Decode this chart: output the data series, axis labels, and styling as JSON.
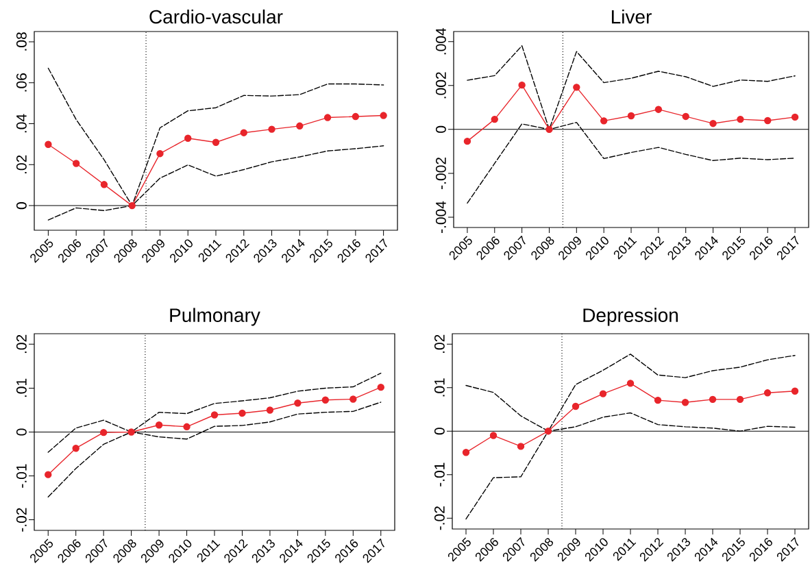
{
  "chart_data": [
    {
      "type": "line",
      "title": "Cardio-vascular",
      "x": [
        2005,
        2006,
        2007,
        2008,
        2009,
        2010,
        2011,
        2012,
        2013,
        2014,
        2015,
        2016,
        2017
      ],
      "xlim": [
        2004.5,
        2017.5
      ],
      "xticks": [
        2005,
        2006,
        2007,
        2008,
        2009,
        2010,
        2011,
        2012,
        2013,
        2014,
        2015,
        2016,
        2017
      ],
      "ylim": [
        -0.012,
        0.085
      ],
      "yticks": [
        {
          "value": 0,
          "label": "0"
        },
        {
          "value": 0.02,
          "label": ".02"
        },
        {
          "value": 0.04,
          "label": ".04"
        },
        {
          "value": 0.06,
          "label": ".06"
        },
        {
          "value": 0.08,
          "label": ".08"
        }
      ],
      "series": [
        {
          "color": "#000000",
          "line_style": "dashed",
          "marker": "none",
          "values": [
            0.0671,
            0.042,
            0.0224,
            0.0,
            0.038,
            0.0463,
            0.0478,
            0.0538,
            0.0535,
            0.0542,
            0.0594,
            0.0594,
            0.0589
          ]
        },
        {
          "color": "#000000",
          "line_style": "dashed",
          "marker": "none",
          "values": [
            -0.007,
            -0.0011,
            -0.0024,
            0.0,
            0.0134,
            0.0199,
            0.0144,
            0.0176,
            0.0214,
            0.0238,
            0.0267,
            0.0278,
            0.0292
          ]
        },
        {
          "color": "#e8252b",
          "line_style": "solid",
          "marker": "circle",
          "values": [
            0.0299,
            0.0206,
            0.0103,
            0.0,
            0.0254,
            0.0329,
            0.0309,
            0.0356,
            0.0373,
            0.0389,
            0.043,
            0.0435,
            0.044
          ]
        }
      ],
      "ref_lines": [
        {
          "axis": "y",
          "value": 0,
          "color": "#000000",
          "line_style": "solid"
        },
        {
          "axis": "x",
          "value": 2008.5,
          "color": "#000000",
          "line_style": "dotted"
        }
      ]
    },
    {
      "type": "line",
      "title": "Liver",
      "x": [
        2005,
        2006,
        2007,
        2008,
        2009,
        2010,
        2011,
        2012,
        2013,
        2014,
        2015,
        2016,
        2017
      ],
      "xlim": [
        2004.5,
        2017.5
      ],
      "xticks": [
        2005,
        2006,
        2007,
        2008,
        2009,
        2010,
        2011,
        2012,
        2013,
        2014,
        2015,
        2016,
        2017
      ],
      "ylim": [
        -0.00447,
        0.00446
      ],
      "yticks": [
        {
          "value": -0.004,
          "label": "-.004"
        },
        {
          "value": -0.002,
          "label": "-.002"
        },
        {
          "value": 0,
          "label": "0"
        },
        {
          "value": 0.002,
          "label": ".002"
        },
        {
          "value": 0.004,
          "label": ".004"
        }
      ],
      "series": [
        {
          "color": "#000000",
          "line_style": "dashed",
          "marker": "none",
          "values": [
            0.00224,
            0.00245,
            0.00381,
            0.0,
            0.00355,
            0.00213,
            0.00233,
            0.00265,
            0.0024,
            0.00196,
            0.00225,
            0.00219,
            0.00244
          ]
        },
        {
          "color": "#000000",
          "line_style": "dashed",
          "marker": "none",
          "values": [
            -0.00336,
            -0.00155,
            0.00025,
            0.0,
            0.00032,
            -0.00133,
            -0.00105,
            -0.00082,
            -0.00114,
            -0.00142,
            -0.00131,
            -0.00138,
            -0.00131
          ]
        },
        {
          "color": "#e8252b",
          "line_style": "solid",
          "marker": "circle",
          "values": [
            -0.00054,
            0.00046,
            0.00202,
            0.0,
            0.00192,
            0.00039,
            0.00062,
            0.00091,
            0.00059,
            0.00027,
            0.00046,
            0.0004,
            0.00056
          ]
        }
      ],
      "ref_lines": [
        {
          "axis": "y",
          "value": 0,
          "color": "#000000",
          "line_style": "solid"
        },
        {
          "axis": "x",
          "value": 2008.5,
          "color": "#000000",
          "line_style": "dotted"
        }
      ]
    },
    {
      "type": "line",
      "title": "Pulmonary",
      "x": [
        2005,
        2006,
        2007,
        2008,
        2009,
        2010,
        2011,
        2012,
        2013,
        2014,
        2015,
        2016,
        2017
      ],
      "xlim": [
        2004.5,
        2017.5
      ],
      "xticks": [
        2005,
        2006,
        2007,
        2008,
        2009,
        2010,
        2011,
        2012,
        2013,
        2014,
        2015,
        2016,
        2017
      ],
      "ylim": [
        -0.0224,
        0.0224
      ],
      "yticks": [
        {
          "value": -0.02,
          "label": "-.02"
        },
        {
          "value": -0.01,
          "label": "-.01"
        },
        {
          "value": 0,
          "label": "0"
        },
        {
          "value": 0.01,
          "label": ".01"
        },
        {
          "value": 0.02,
          "label": ".02"
        }
      ],
      "series": [
        {
          "color": "#000000",
          "line_style": "dashed",
          "marker": "none",
          "values": [
            -0.0046,
            0.0009,
            0.0027,
            0.0,
            0.0045,
            0.0042,
            0.0065,
            0.0071,
            0.0078,
            0.0093,
            0.01,
            0.0103,
            0.0134
          ]
        },
        {
          "color": "#000000",
          "line_style": "dashed",
          "marker": "none",
          "values": [
            -0.0148,
            -0.0083,
            -0.0028,
            0.0,
            -0.0011,
            -0.0016,
            0.0013,
            0.0015,
            0.0023,
            0.0041,
            0.0045,
            0.0047,
            0.0068
          ]
        },
        {
          "color": "#e8252b",
          "line_style": "solid",
          "marker": "circle",
          "values": [
            -0.0097,
            -0.0037,
            -0.0001,
            0.0,
            0.0016,
            0.0012,
            0.0039,
            0.0043,
            0.005,
            0.0066,
            0.0073,
            0.0075,
            0.0102
          ]
        }
      ],
      "ref_lines": [
        {
          "axis": "y",
          "value": 0,
          "color": "#000000",
          "line_style": "solid"
        },
        {
          "axis": "x",
          "value": 2008.5,
          "color": "#000000",
          "line_style": "dotted"
        }
      ]
    },
    {
      "type": "line",
      "title": "Depression",
      "x": [
        2005,
        2006,
        2007,
        2008,
        2009,
        2010,
        2011,
        2012,
        2013,
        2014,
        2015,
        2016,
        2017
      ],
      "xlim": [
        2004.5,
        2017.5
      ],
      "xticks": [
        2005,
        2006,
        2007,
        2008,
        2009,
        2010,
        2011,
        2012,
        2013,
        2014,
        2015,
        2016,
        2017
      ],
      "ylim": [
        -0.0225,
        0.0224
      ],
      "yticks": [
        {
          "value": -0.02,
          "label": "-.02"
        },
        {
          "value": -0.01,
          "label": "-.01"
        },
        {
          "value": 0,
          "label": "0"
        },
        {
          "value": 0.01,
          "label": ".01"
        },
        {
          "value": 0.02,
          "label": ".02"
        }
      ],
      "series": [
        {
          "color": "#000000",
          "line_style": "dashed",
          "marker": "none",
          "values": [
            0.0105,
            0.0089,
            0.0035,
            0.0,
            0.0107,
            0.014,
            0.0177,
            0.0129,
            0.0123,
            0.0139,
            0.0147,
            0.0164,
            0.0174
          ]
        },
        {
          "color": "#000000",
          "line_style": "dashed",
          "marker": "none",
          "values": [
            -0.0202,
            -0.0107,
            -0.0105,
            0.0,
            0.001,
            0.0032,
            0.0042,
            0.0015,
            0.001,
            0.0007,
            0.0,
            0.0011,
            0.0009
          ]
        },
        {
          "color": "#e8252b",
          "line_style": "solid",
          "marker": "circle",
          "values": [
            -0.0049,
            -0.001,
            -0.0035,
            0.0,
            0.0057,
            0.0086,
            0.011,
            0.0071,
            0.0066,
            0.0073,
            0.0073,
            0.0088,
            0.0092
          ]
        }
      ],
      "ref_lines": [
        {
          "axis": "y",
          "value": 0,
          "color": "#000000",
          "line_style": "solid"
        },
        {
          "axis": "x",
          "value": 2008.5,
          "color": "#000000",
          "line_style": "dotted"
        }
      ]
    }
  ]
}
